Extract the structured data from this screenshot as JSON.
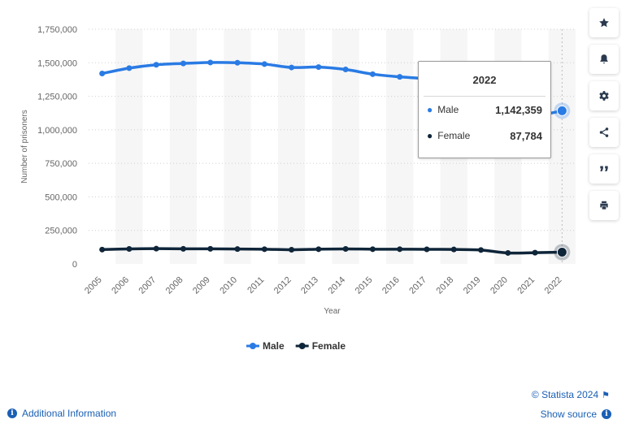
{
  "chart_data": {
    "type": "line",
    "title": "",
    "xlabel": "Year",
    "ylabel": "Number of prisoners",
    "ylim": [
      0,
      1750000
    ],
    "yticks": [
      0,
      250000,
      500000,
      750000,
      1000000,
      1250000,
      1500000,
      1750000
    ],
    "ytick_labels": [
      "0",
      "250,000",
      "500,000",
      "750,000",
      "1,000,000",
      "1,250,000",
      "1,500,000",
      "1,750,000"
    ],
    "x": [
      "2005",
      "2006",
      "2007",
      "2008",
      "2009",
      "2010",
      "2011",
      "2012",
      "2013",
      "2014",
      "2015",
      "2016",
      "2017",
      "2018",
      "2019",
      "2020",
      "2021",
      "2022"
    ],
    "series": [
      {
        "name": "Male",
        "color": "#2a7be4",
        "values": [
          1420000,
          1460000,
          1485000,
          1495000,
          1502000,
          1500000,
          1490000,
          1465000,
          1468000,
          1450000,
          1415000,
          1395000,
          1380000,
          1350000,
          1310000,
          1140000,
          1108000,
          1142359
        ]
      },
      {
        "name": "Female",
        "color": "#0f2539",
        "values": [
          107000,
          112000,
          114000,
          113000,
          113000,
          111000,
          110000,
          106000,
          110000,
          112000,
          110000,
          110000,
          109000,
          108000,
          104000,
          82000,
          84000,
          87784
        ]
      }
    ],
    "grid": "horizontal dotted",
    "legend_position": "bottom-center",
    "highlighted_category": "2022"
  },
  "tooltip": {
    "title": "2022",
    "rows": [
      {
        "label": "Male",
        "value": "1,142,359",
        "color": "#2a7be4"
      },
      {
        "label": "Female",
        "value": "87,784",
        "color": "#0f2539"
      }
    ]
  },
  "toolbar": {
    "buttons": [
      {
        "name": "star-icon"
      },
      {
        "name": "bell-icon"
      },
      {
        "name": "gear-icon"
      },
      {
        "name": "share-icon"
      },
      {
        "name": "quote-icon"
      },
      {
        "name": "print-icon"
      }
    ]
  },
  "footer": {
    "credit": "© Statista 2024",
    "show_source": "Show source",
    "additional_info": "Additional Information"
  }
}
